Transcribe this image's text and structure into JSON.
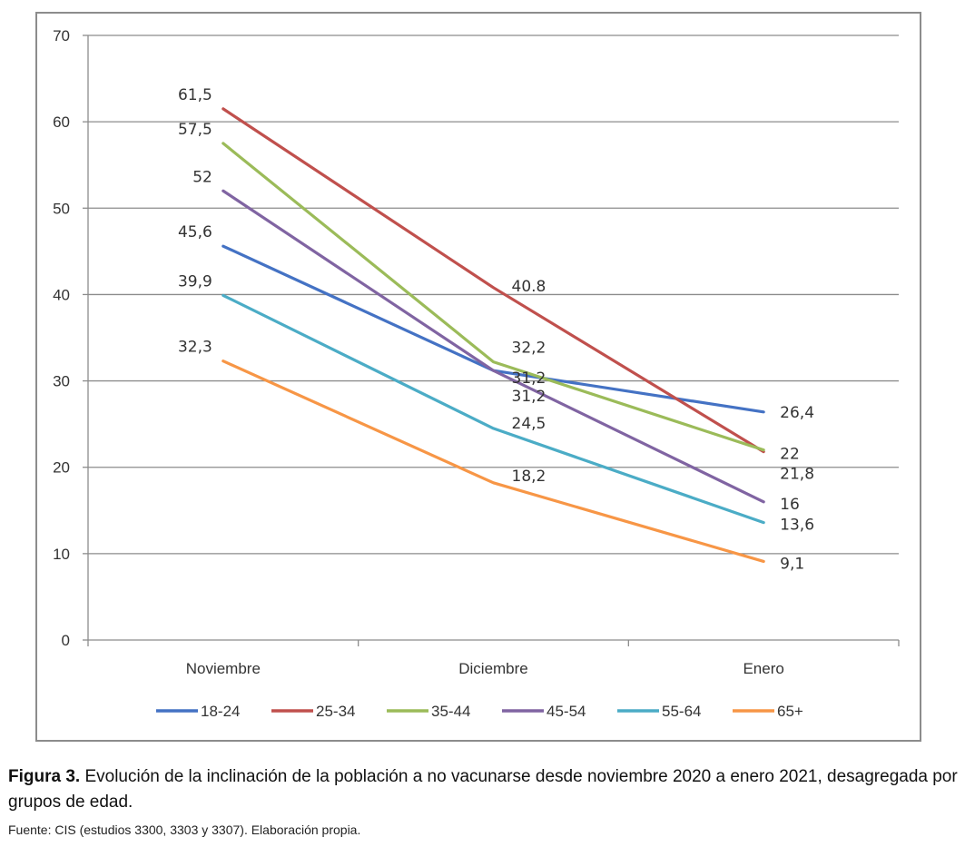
{
  "chart_data": {
    "type": "line",
    "categories": [
      "Noviembre",
      "Diciembre",
      "Enero"
    ],
    "ylim": [
      0,
      70
    ],
    "yticks": [
      0,
      10,
      20,
      30,
      40,
      50,
      60,
      70
    ],
    "grid": true,
    "legend_position": "bottom",
    "series": [
      {
        "name": "18-24",
        "color": "#4472C4",
        "values": [
          45.6,
          31.2,
          26.4
        ],
        "labels": [
          "45,6",
          "31,2",
          "26,4"
        ]
      },
      {
        "name": "25-34",
        "color": "#C0504D",
        "values": [
          61.5,
          40.8,
          21.8
        ],
        "labels": [
          "61,5",
          "40.8",
          "21,8"
        ]
      },
      {
        "name": "35-44",
        "color": "#9BBB59",
        "values": [
          57.5,
          32.2,
          22
        ],
        "labels": [
          "57,5",
          "32,2",
          "22"
        ]
      },
      {
        "name": "45-54",
        "color": "#8064A2",
        "values": [
          52,
          31.2,
          16
        ],
        "labels": [
          "52",
          "31,2",
          "16"
        ]
      },
      {
        "name": "55-64",
        "color": "#4BACC6",
        "values": [
          39.9,
          24.5,
          13.6
        ],
        "labels": [
          "39,9",
          "24,5",
          "13,6"
        ]
      },
      {
        "name": "65+",
        "color": "#F79646",
        "values": [
          32.3,
          18.2,
          9.1
        ],
        "labels": [
          "32,3",
          "18,2",
          "9,1"
        ]
      }
    ]
  },
  "caption": {
    "figure_label": "Figura 3.",
    "text": " Evolución de la inclinación de la población a no vacunarse desde noviembre 2020 a enero 2021, desagregada por grupos de edad.",
    "source": "Fuente: CIS (estudios 3300, 3303 y 3307). Elaboración propia."
  }
}
